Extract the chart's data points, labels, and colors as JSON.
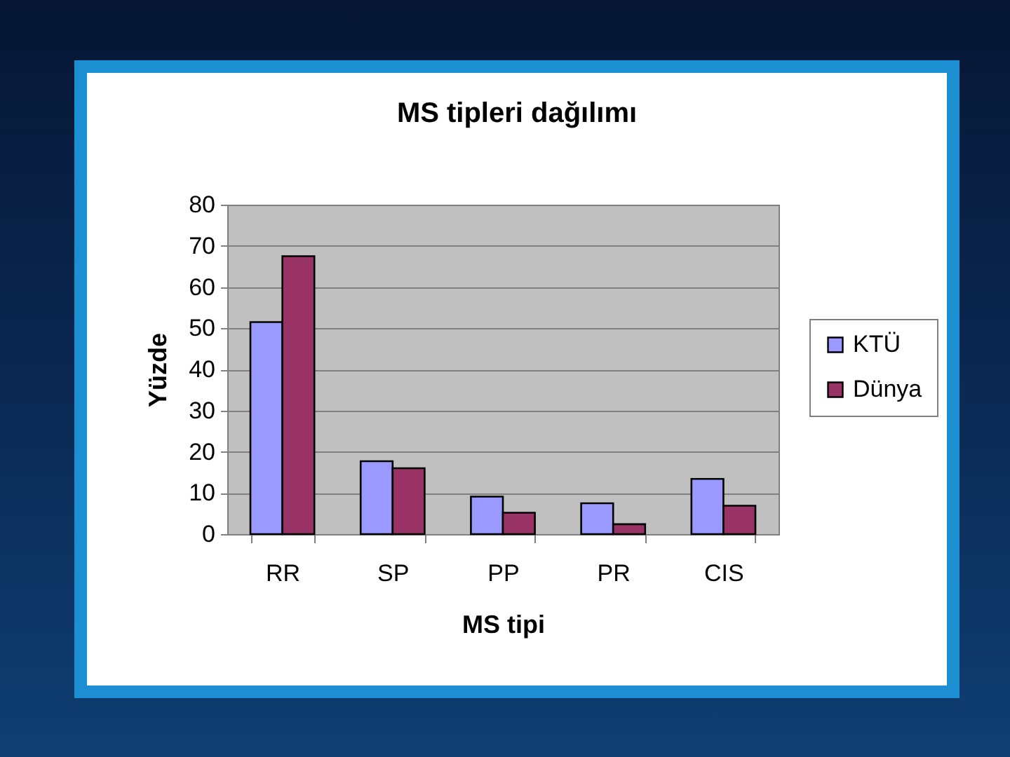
{
  "chart_data": {
    "type": "bar",
    "title": "MS tipleri dağılımı",
    "xlabel": "MS tipi",
    "ylabel": "Yüzde",
    "categories": [
      "RR",
      "SP",
      "PP",
      "PR",
      "CIS"
    ],
    "series": [
      {
        "name": "KTÜ",
        "color": "#9999ff",
        "values": [
          51.5,
          17.7,
          9.1,
          7.5,
          13.4
        ]
      },
      {
        "name": "Dünya",
        "color": "#993366",
        "values": [
          67.5,
          16,
          5.2,
          2.4,
          6.9
        ]
      }
    ],
    "ylim": [
      0,
      80
    ],
    "yticks": [
      0,
      10,
      20,
      30,
      40,
      50,
      60,
      70,
      80
    ],
    "grid": "y",
    "legend": "right"
  }
}
